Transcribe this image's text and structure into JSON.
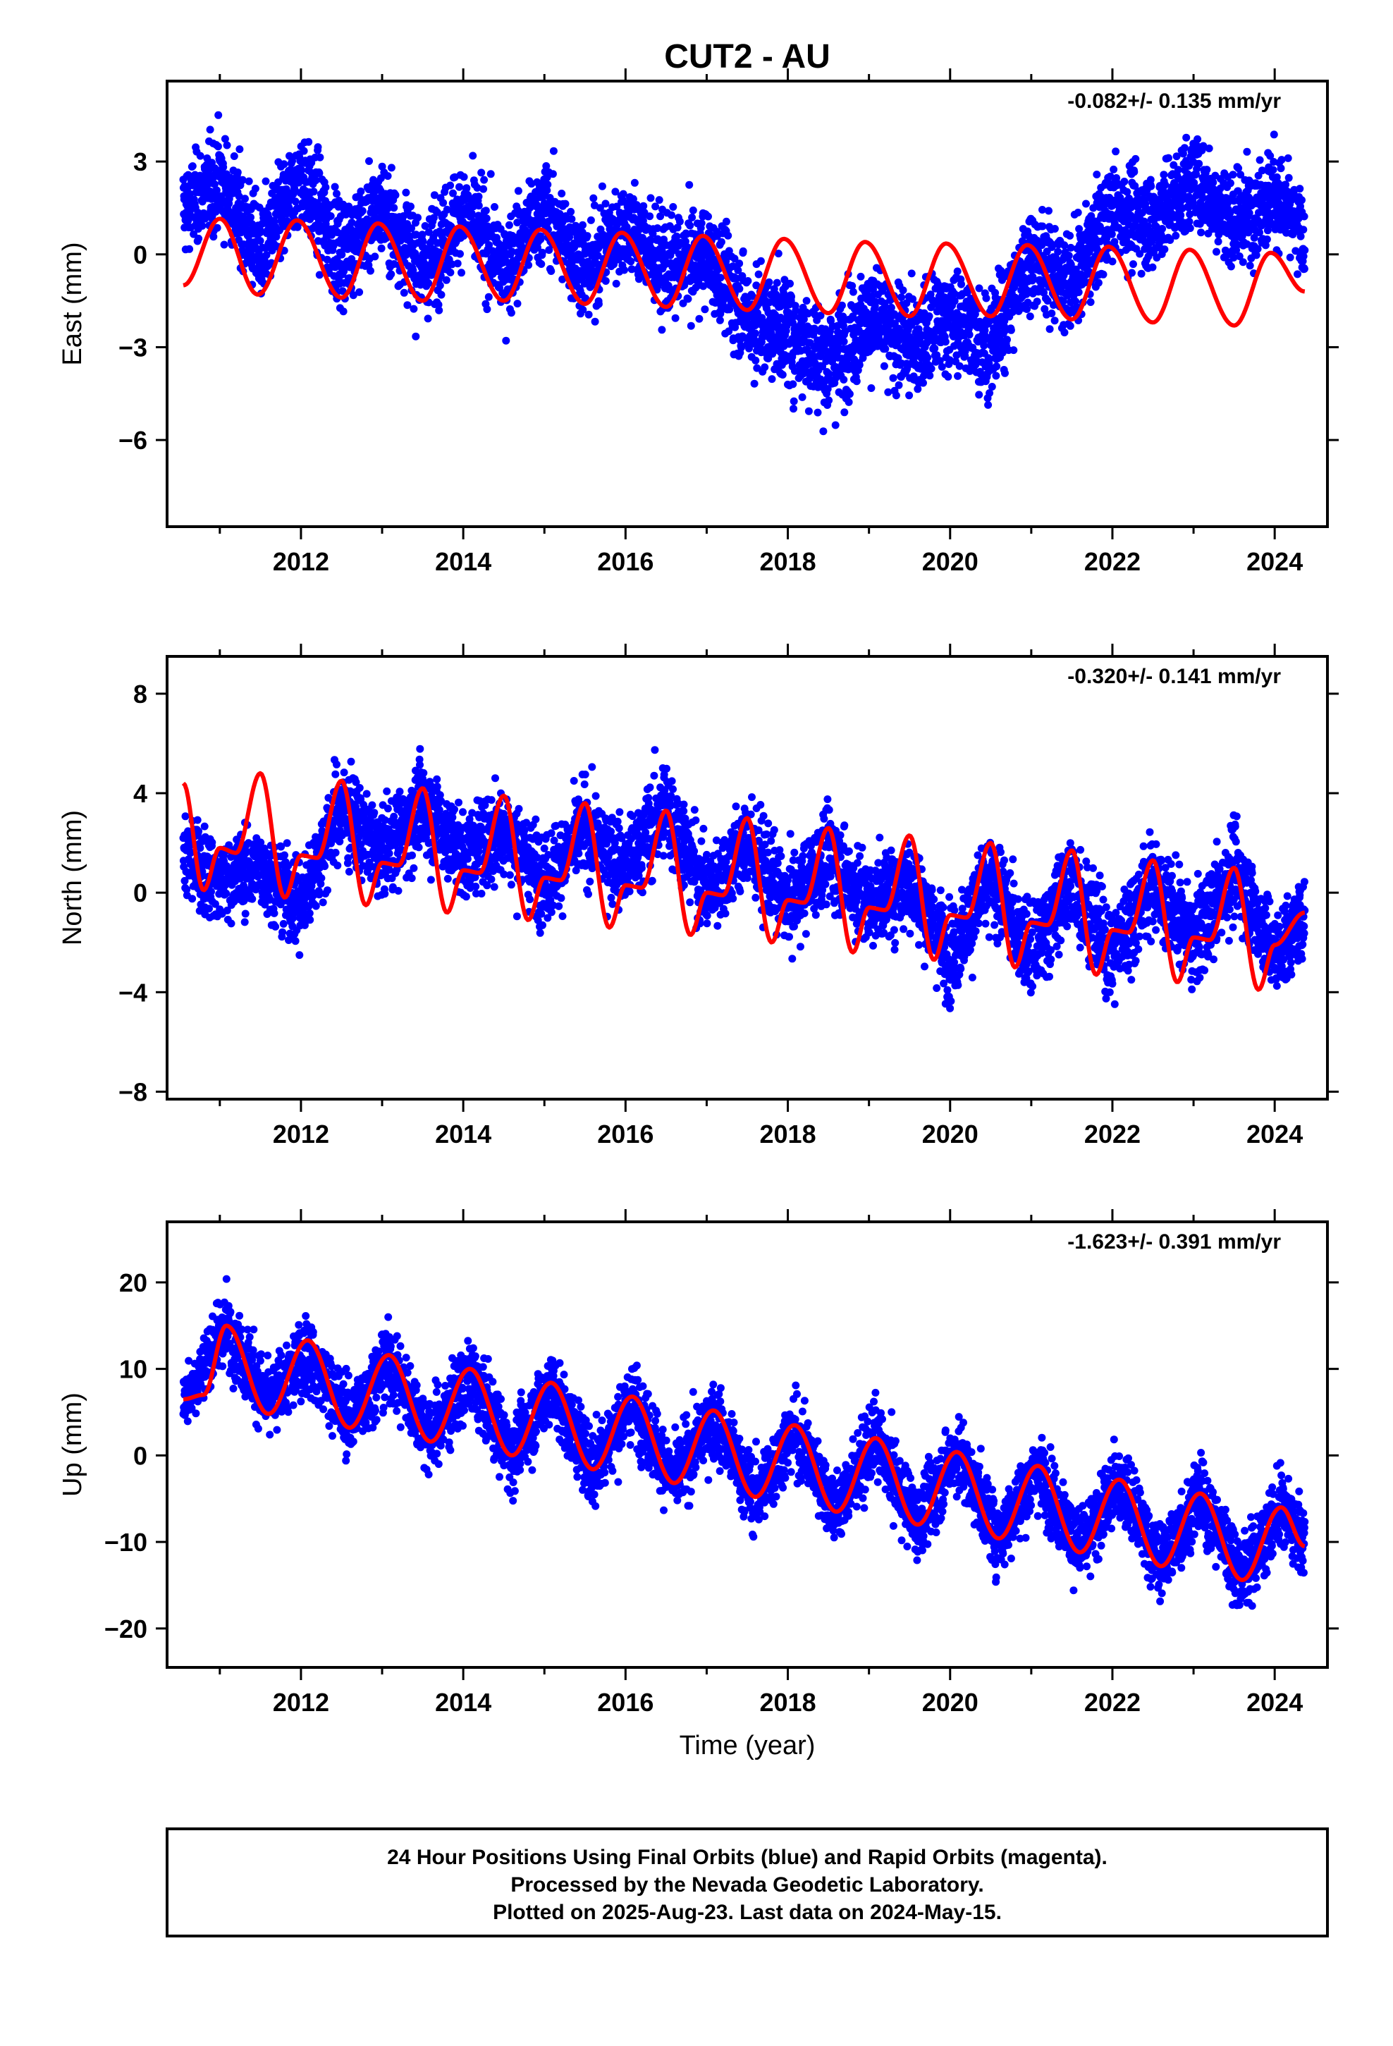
{
  "title": "CUT2 - AU",
  "x_axis_label": "Time (year)",
  "footer": {
    "line1": "24 Hour Positions Using Final Orbits (blue) and Rapid Orbits (magenta).",
    "line2": "Processed by the Nevada Geodetic Laboratory.",
    "line3": "Plotted on 2025-Aug-23. Last data on 2024-May-15."
  },
  "colors": {
    "data": "#0000ff",
    "model": "#ff0000",
    "frame": "#000000"
  },
  "chart_data": [
    {
      "type": "scatter",
      "component": "east",
      "ylabel": "East (mm)",
      "rate_label": "-0.082+/- 0.135 mm/yr",
      "xlim": [
        2010.35,
        2024.65
      ],
      "ylim": [
        -8.8,
        5.6
      ],
      "xticks": [
        2012,
        2014,
        2016,
        2018,
        2020,
        2022,
        2024
      ],
      "yticks": [
        3,
        0,
        -3,
        -6
      ],
      "ytick_labels": [
        "3",
        "0",
        "−3",
        "−6"
      ],
      "x_range": [
        2010.55,
        2024.37
      ],
      "data_points": 4800,
      "model_curve": {
        "x": [
          2010.55,
          2011.0,
          2011.47,
          2011.95,
          2012.5,
          2012.95,
          2013.5,
          2013.95,
          2014.5,
          2014.95,
          2015.5,
          2015.95,
          2016.5,
          2016.95,
          2017.5,
          2017.95,
          2018.5,
          2018.95,
          2019.5,
          2019.95,
          2020.5,
          2020.95,
          2021.5,
          2021.95,
          2022.5,
          2022.95,
          2023.5,
          2023.95,
          2024.37
        ],
        "y": [
          -1.0,
          1.15,
          -1.3,
          1.1,
          -1.4,
          1.0,
          -1.5,
          0.9,
          -1.5,
          0.8,
          -1.6,
          0.7,
          -1.7,
          0.6,
          -1.8,
          0.5,
          -1.9,
          0.4,
          -2.0,
          0.35,
          -2.0,
          0.3,
          -2.1,
          0.25,
          -2.2,
          0.15,
          -2.3,
          0.05,
          -1.2
        ]
      },
      "data_envelope": {
        "x": [
          2010.6,
          2011.0,
          2011.5,
          2012.0,
          2012.5,
          2013.0,
          2013.5,
          2014.0,
          2014.5,
          2015.0,
          2015.5,
          2016.0,
          2016.5,
          2017.0,
          2017.5,
          2018.0,
          2018.5,
          2019.0,
          2019.5,
          2020.0,
          2020.5,
          2021.0,
          2021.5,
          2022.0,
          2022.5,
          2023.0,
          2023.5,
          2024.0,
          2024.35
        ],
        "center": [
          1.5,
          2.5,
          0.0,
          2.5,
          0.0,
          1.5,
          -0.5,
          1.5,
          -0.5,
          1.5,
          -0.5,
          1.0,
          -0.5,
          0.0,
          -2.0,
          -2.5,
          -3.5,
          -2.0,
          -3.0,
          -2.0,
          -3.0,
          0.0,
          -1.0,
          1.5,
          1.0,
          2.5,
          1.0,
          2.0,
          0.5
        ],
        "spread": [
          1.3,
          1.4,
          1.5,
          1.4,
          1.6,
          1.4,
          1.5,
          1.4,
          1.5,
          1.4,
          1.5,
          1.4,
          1.5,
          1.4,
          1.6,
          1.6,
          1.7,
          1.5,
          1.6,
          1.5,
          1.6,
          1.4,
          1.5,
          1.4,
          1.5,
          1.4,
          1.5,
          1.4,
          1.3
        ]
      }
    },
    {
      "type": "scatter",
      "component": "north",
      "ylabel": "North (mm)",
      "rate_label": "-0.320+/- 0.141 mm/yr",
      "xlim": [
        2010.35,
        2024.65
      ],
      "ylim": [
        -8.3,
        9.5
      ],
      "xticks": [
        2012,
        2014,
        2016,
        2018,
        2020,
        2022,
        2024
      ],
      "yticks": [
        8,
        4,
        0,
        -4,
        -8
      ],
      "ytick_labels": [
        "8",
        "4",
        "0",
        "−4",
        "−8"
      ],
      "x_range": [
        2010.55,
        2024.37
      ],
      "data_points": 4800,
      "model_curve": {
        "x": [
          2010.55,
          2010.8,
          2011.0,
          2011.2,
          2011.5,
          2011.8,
          2012.0,
          2012.2,
          2012.5,
          2012.8,
          2013.0,
          2013.2,
          2013.5,
          2013.8,
          2014.0,
          2014.2,
          2014.5,
          2014.8,
          2015.0,
          2015.2,
          2015.5,
          2015.8,
          2016.0,
          2016.2,
          2016.5,
          2016.8,
          2017.0,
          2017.2,
          2017.5,
          2017.8,
          2018.0,
          2018.2,
          2018.5,
          2018.8,
          2019.0,
          2019.2,
          2019.5,
          2019.8,
          2020.0,
          2020.2,
          2020.5,
          2020.8,
          2021.0,
          2021.2,
          2021.5,
          2021.8,
          2022.0,
          2022.2,
          2022.5,
          2022.8,
          2023.0,
          2023.2,
          2023.5,
          2023.8,
          2024.0,
          2024.37
        ],
        "y": [
          4.4,
          0.1,
          1.8,
          1.6,
          4.8,
          -0.2,
          1.5,
          1.4,
          4.5,
          -0.5,
          1.2,
          1.1,
          4.2,
          -0.8,
          0.9,
          0.8,
          3.9,
          -1.1,
          0.6,
          0.5,
          3.6,
          -1.4,
          0.3,
          0.2,
          3.3,
          -1.7,
          0.0,
          -0.1,
          3.0,
          -2.0,
          -0.3,
          -0.4,
          2.6,
          -2.4,
          -0.6,
          -0.7,
          2.3,
          -2.7,
          -0.9,
          -1.0,
          2.0,
          -3.0,
          -1.2,
          -1.3,
          1.7,
          -3.3,
          -1.5,
          -1.6,
          1.3,
          -3.6,
          -1.8,
          -1.9,
          1.0,
          -3.9,
          -2.1,
          -0.8
        ]
      },
      "data_envelope": {
        "x": [
          2010.6,
          2011.0,
          2011.5,
          2012.0,
          2012.5,
          2013.0,
          2013.5,
          2014.0,
          2014.5,
          2015.0,
          2015.5,
          2016.0,
          2016.5,
          2017.0,
          2017.5,
          2018.0,
          2018.5,
          2019.0,
          2019.5,
          2020.0,
          2020.5,
          2021.0,
          2021.5,
          2022.0,
          2022.5,
          2023.0,
          2023.5,
          2024.0,
          2024.35
        ],
        "center": [
          1.5,
          0.5,
          1.0,
          -0.5,
          3.5,
          1.5,
          3.5,
          1.5,
          2.5,
          0.5,
          2.5,
          1.0,
          3.5,
          0.0,
          2.0,
          -0.5,
          1.5,
          -0.5,
          0.5,
          -2.5,
          0.5,
          -2.5,
          0.5,
          -2.5,
          0.5,
          -2.0,
          1.0,
          -2.5,
          -1.0
        ],
        "spread": [
          1.6,
          1.5,
          1.5,
          1.6,
          1.8,
          1.6,
          1.8,
          1.6,
          1.7,
          1.6,
          1.7,
          1.6,
          1.9,
          1.6,
          1.8,
          1.6,
          1.7,
          1.6,
          1.7,
          1.7,
          1.7,
          1.7,
          1.8,
          1.8,
          1.7,
          1.7,
          1.8,
          1.6,
          1.5
        ]
      }
    },
    {
      "type": "scatter",
      "component": "up",
      "ylabel": "Up (mm)",
      "rate_label": "-1.623+/- 0.391 mm/yr",
      "xlim": [
        2010.35,
        2024.65
      ],
      "ylim": [
        -24.5,
        27
      ],
      "xticks": [
        2012,
        2014,
        2016,
        2018,
        2020,
        2022,
        2024
      ],
      "yticks": [
        20,
        10,
        0,
        -10,
        -20
      ],
      "ytick_labels": [
        "20",
        "10",
        "0",
        "−10",
        "−20"
      ],
      "x_range": [
        2010.55,
        2024.37
      ],
      "data_points": 4800,
      "model_curve": {
        "x": [
          2010.55,
          2010.8,
          2011.08,
          2011.6,
          2012.08,
          2012.6,
          2013.08,
          2013.6,
          2014.08,
          2014.6,
          2015.08,
          2015.6,
          2016.08,
          2016.6,
          2017.08,
          2017.6,
          2018.08,
          2018.6,
          2019.08,
          2019.6,
          2020.08,
          2020.6,
          2021.08,
          2021.6,
          2022.08,
          2022.6,
          2023.08,
          2023.6,
          2024.08,
          2024.37
        ],
        "y": [
          6.5,
          7.0,
          15.0,
          4.8,
          13.3,
          3.2,
          11.6,
          1.6,
          10.0,
          0.0,
          8.4,
          -1.6,
          6.8,
          -3.2,
          5.2,
          -4.8,
          3.5,
          -6.5,
          2.0,
          -8.0,
          0.4,
          -9.6,
          -1.2,
          -11.2,
          -2.8,
          -12.8,
          -4.4,
          -14.4,
          -6.0,
          -10.5
        ]
      },
      "data_envelope": {
        "x": [
          2010.6,
          2011.08,
          2011.6,
          2012.08,
          2012.6,
          2013.08,
          2013.6,
          2014.08,
          2014.6,
          2015.08,
          2015.6,
          2016.08,
          2016.6,
          2017.08,
          2017.6,
          2018.08,
          2018.6,
          2019.08,
          2019.6,
          2020.08,
          2020.6,
          2021.08,
          2021.6,
          2022.08,
          2022.6,
          2023.08,
          2023.6,
          2024.08,
          2024.35
        ],
        "center": [
          7.0,
          15.0,
          6.0,
          12.0,
          4.0,
          11.0,
          2.0,
          9.5,
          0.0,
          8.0,
          -1.5,
          6.5,
          -3.0,
          4.5,
          -5.0,
          3.0,
          -6.5,
          2.0,
          -8.0,
          0.5,
          -9.5,
          -1.5,
          -11.0,
          -3.0,
          -12.5,
          -4.5,
          -14.0,
          -6.0,
          -10.0
        ],
        "spread": [
          3.5,
          4.0,
          4.0,
          4.0,
          4.0,
          4.0,
          4.0,
          4.0,
          4.0,
          4.0,
          4.0,
          4.0,
          4.0,
          4.0,
          4.0,
          4.0,
          4.0,
          4.0,
          4.0,
          4.0,
          4.0,
          4.0,
          4.0,
          4.0,
          4.0,
          4.0,
          4.0,
          4.0,
          3.5
        ]
      }
    }
  ]
}
